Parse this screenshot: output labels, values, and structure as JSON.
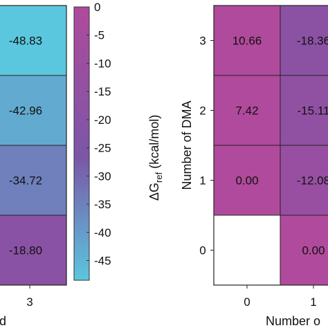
{
  "chart_data": [
    {
      "type": "heatmap",
      "title": "",
      "xlabel": "d",
      "ylabel": "",
      "x_tick_labels": [
        "3"
      ],
      "column": [
        {
          "value": -48.83,
          "label": "-48.83"
        },
        {
          "value": -42.96,
          "label": "-42.96"
        },
        {
          "value": -34.72,
          "label": "-34.72"
        },
        {
          "value": -18.8,
          "label": "-18.80"
        }
      ]
    },
    {
      "type": "colorbar",
      "label_prefix": "ΔG",
      "label_sub": "ref",
      "label_suffix": " (kcal/mol)",
      "range": [
        -48.5,
        0
      ],
      "ticks": [
        0,
        -5,
        -10,
        -15,
        -20,
        -25,
        -30,
        -35,
        -40,
        -45
      ],
      "tick_labels": [
        "0",
        "-5",
        "-10",
        "-15",
        "-20",
        "-25",
        "-30",
        "-35",
        "-40",
        "-45"
      ],
      "color_low": "#5bc7df",
      "color_high": "#b04a9c"
    },
    {
      "type": "heatmap",
      "title": "",
      "xlabel": "Number o",
      "ylabel": "Number of DMA",
      "x_tick_labels": [
        "0",
        "1"
      ],
      "y_tick_labels": [
        "3",
        "2",
        "1",
        "0"
      ],
      "rows": [
        {
          "y": 3,
          "cells": [
            {
              "x": 0,
              "value": 10.66,
              "label": "10.66"
            },
            {
              "x": 1,
              "value": -18.36,
              "label": "-18.36"
            }
          ]
        },
        {
          "y": 2,
          "cells": [
            {
              "x": 0,
              "value": 7.42,
              "label": "7.42"
            },
            {
              "x": 1,
              "value": -15.11,
              "label": "-15.11"
            }
          ]
        },
        {
          "y": 1,
          "cells": [
            {
              "x": 0,
              "value": 0.0,
              "label": "0.00"
            },
            {
              "x": 1,
              "value": -12.08,
              "label": "-12.08"
            }
          ]
        },
        {
          "y": 0,
          "cells": [
            {
              "x": 0,
              "value": null,
              "label": ""
            },
            {
              "x": 1,
              "value": 0.0,
              "label": "0.00"
            }
          ]
        }
      ]
    }
  ]
}
